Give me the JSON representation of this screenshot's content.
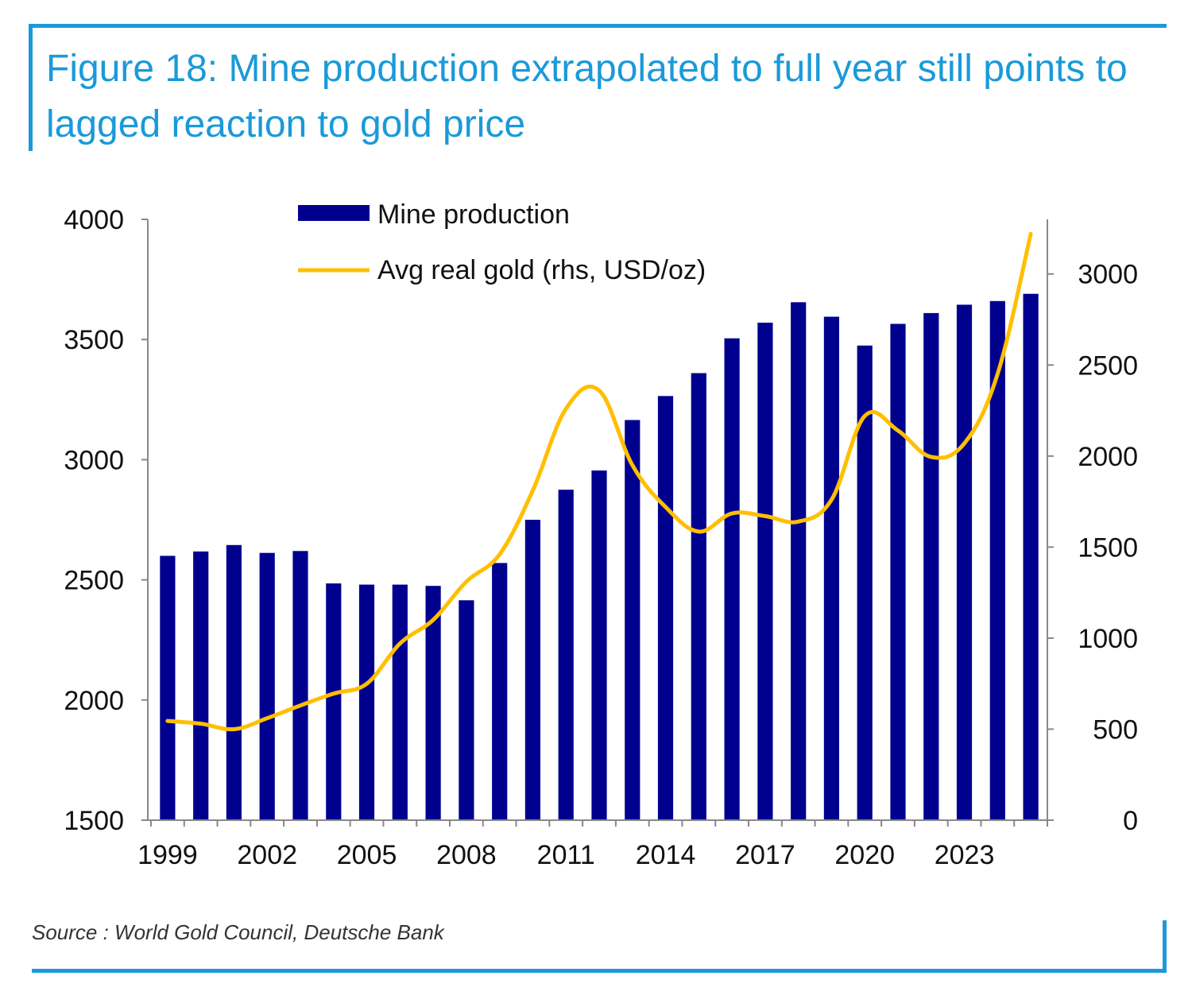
{
  "figure": {
    "title": "Figure 18: Mine production extrapolated to full year still points to lagged reaction to gold price",
    "source": "Source : World Gold Council, Deutsche Bank"
  },
  "colors": {
    "accent": "#1a9ad9",
    "bar": "#00008f",
    "line": "#ffbf00",
    "axis": "#888888",
    "text": "#111111"
  },
  "chart_data": {
    "type": "bar",
    "title": "Figure 18: Mine production extrapolated to full year still points to lagged reaction to gold price",
    "xlabel": "",
    "ylabel": "",
    "categories": [
      "1999",
      "2000",
      "2001",
      "2002",
      "2003",
      "2004",
      "2005",
      "2006",
      "2007",
      "2008",
      "2009",
      "2010",
      "2011",
      "2012",
      "2013",
      "2014",
      "2015",
      "2016",
      "2017",
      "2018",
      "2019",
      "2020",
      "2021",
      "2022",
      "2023",
      "2024",
      "2025"
    ],
    "x_tick_labels": [
      "1999",
      "2002",
      "2005",
      "2008",
      "2011",
      "2014",
      "2017",
      "2020",
      "2023"
    ],
    "series": [
      {
        "name": "Mine production",
        "type": "bar",
        "axis": "left",
        "values": [
          2600,
          2618,
          2645,
          2612,
          2620,
          2485,
          2480,
          2480,
          2475,
          2415,
          2570,
          2750,
          2875,
          2955,
          3165,
          3265,
          3360,
          3505,
          3570,
          3655,
          3595,
          3475,
          3565,
          3610,
          3645,
          3660,
          3690
        ]
      },
      {
        "name": "Avg real gold (rhs, USD/oz)",
        "type": "line",
        "axis": "right",
        "values": [
          545,
          530,
          500,
          560,
          630,
          695,
          750,
          970,
          1100,
          1310,
          1460,
          1810,
          2260,
          2360,
          1950,
          1720,
          1585,
          1685,
          1670,
          1640,
          1760,
          2220,
          2140,
          1995,
          2070,
          2450,
          3220
        ]
      }
    ],
    "y_left": {
      "range": [
        1500,
        4000
      ],
      "ticks": [
        "1500",
        "2000",
        "2500",
        "3000",
        "3500",
        "4000"
      ]
    },
    "y_right": {
      "range": [
        0,
        3300
      ],
      "ticks": [
        "0",
        "500",
        "1000",
        "1500",
        "2000",
        "2500",
        "3000"
      ]
    },
    "legend": "top-center",
    "grid": false
  }
}
